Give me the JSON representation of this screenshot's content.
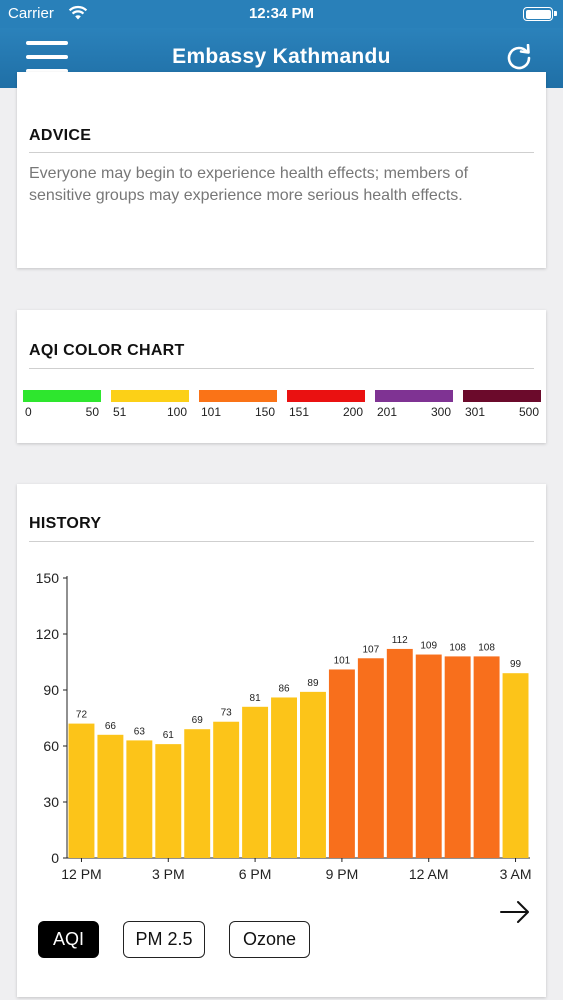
{
  "status_bar": {
    "carrier": "Carrier",
    "time": "12:34 PM"
  },
  "nav": {
    "title": "Embassy Kathmandu",
    "menu_icon": "hamburger-icon",
    "refresh_icon": "refresh-icon"
  },
  "advice": {
    "title": "ADVICE",
    "text": "Everyone may begin to experience health effects; members of sensitive groups may experience more serious health effects."
  },
  "aqi_color_chart": {
    "title": "AQI COLOR CHART",
    "scales": [
      {
        "low": "0",
        "high": "50",
        "color": "#2ee62e"
      },
      {
        "low": "51",
        "high": "100",
        "color": "#fcd017"
      },
      {
        "low": "101",
        "high": "150",
        "color": "#fa7317"
      },
      {
        "low": "151",
        "high": "200",
        "color": "#ea1111"
      },
      {
        "low": "201",
        "high": "300",
        "color": "#7f3393"
      },
      {
        "low": "301",
        "high": "500",
        "color": "#6b0a2b"
      }
    ]
  },
  "history": {
    "title": "HISTORY",
    "next_icon": "arrow-right-icon",
    "tabs": [
      {
        "label": "AQI",
        "active": true
      },
      {
        "label": "PM 2.5",
        "active": false
      },
      {
        "label": "Ozone",
        "active": false
      }
    ]
  },
  "chart_data": {
    "type": "bar",
    "title": "",
    "xlabel": "",
    "ylabel": "",
    "ylim": [
      0,
      150
    ],
    "y_ticks": [
      "0",
      "30",
      "60",
      "90",
      "120",
      "150"
    ],
    "x_tick_labels": [
      "12 PM",
      "3 PM",
      "6 PM",
      "9 PM",
      "12 AM",
      "3 AM"
    ],
    "values": [
      72,
      66,
      63,
      61,
      69,
      73,
      81,
      86,
      89,
      101,
      107,
      112,
      109,
      108,
      108,
      99
    ],
    "colors": {
      "moderate": "#fcc419",
      "unhealthy_sensitive": "#f86f1c"
    },
    "grid": false,
    "legend": "none"
  }
}
